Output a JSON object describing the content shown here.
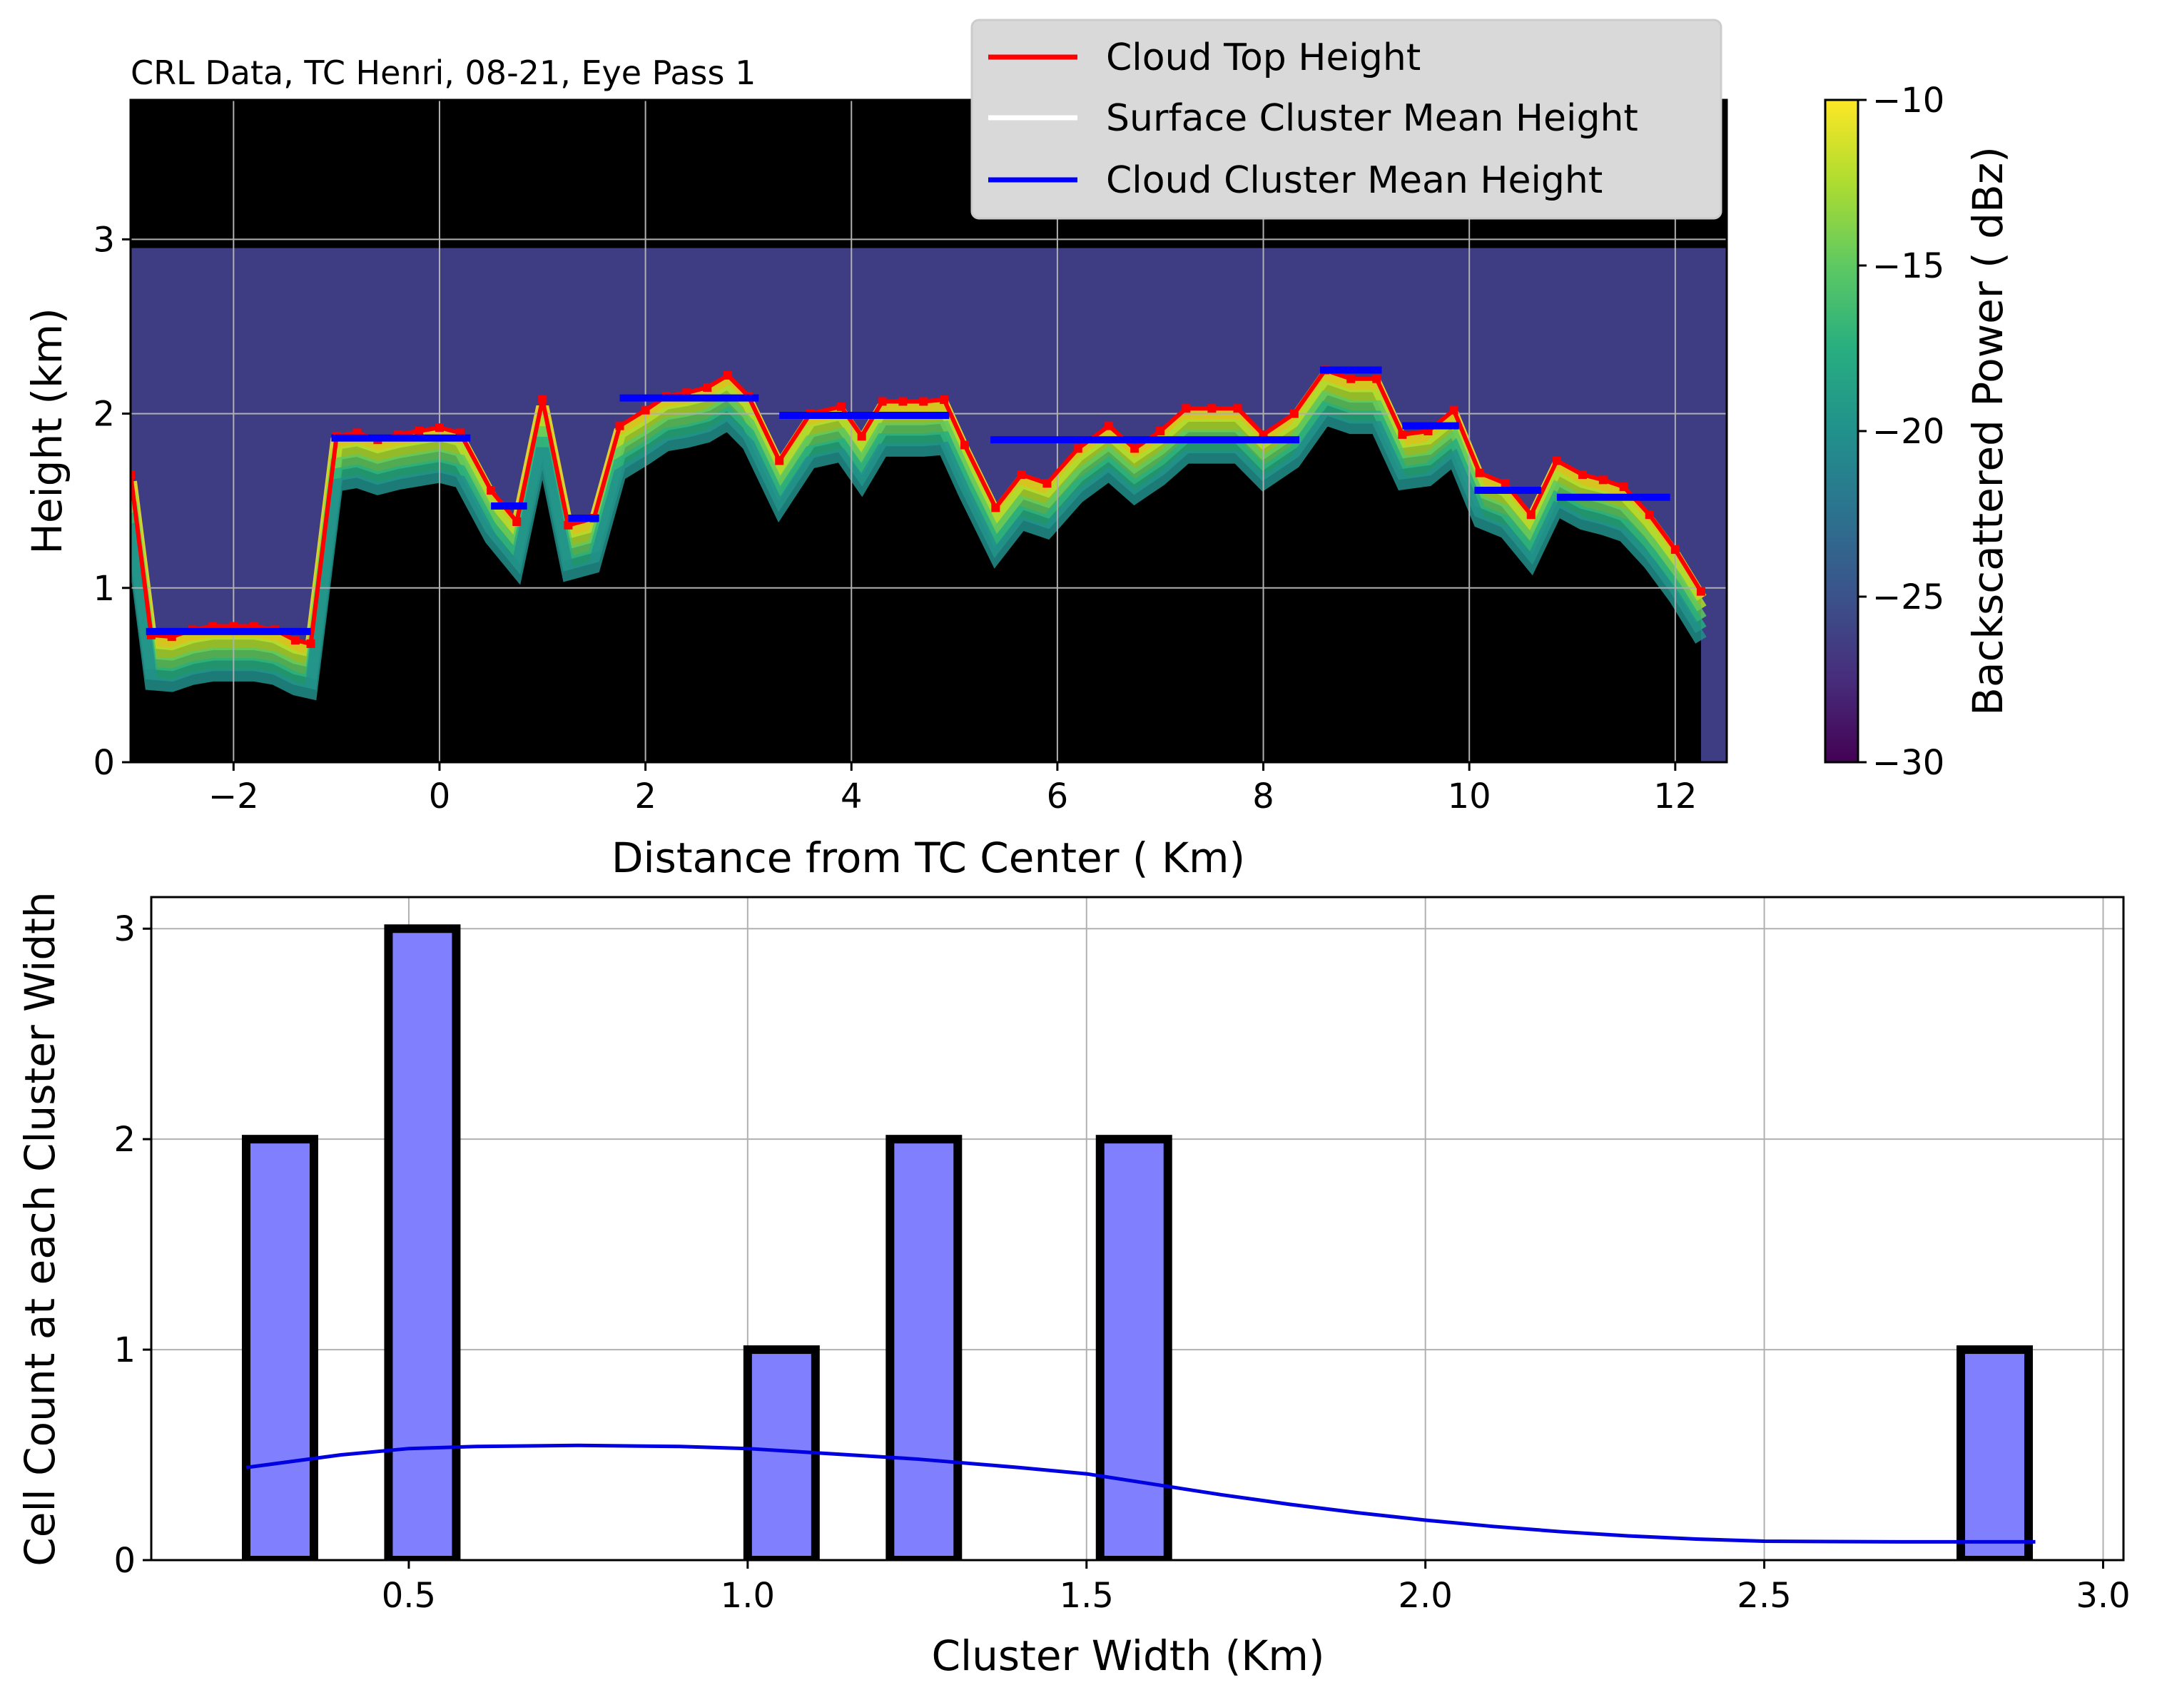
{
  "chart_data": [
    {
      "type": "heatmap",
      "title": "CRL Data, TC Henri, 08-21, Eye Pass 1",
      "xlabel": "Distance from TC Center ( Km)",
      "ylabel": "Height (km)",
      "xlim": [
        -3.0,
        12.5
      ],
      "ylim": [
        0,
        3.8
      ],
      "xticks": [
        -2,
        0,
        2,
        4,
        6,
        8,
        10,
        12
      ],
      "yticks": [
        0,
        1,
        2,
        3
      ],
      "grid": true,
      "legend_position": "top-right",
      "colorbar": {
        "label": "Backscattered Power ( dBz)",
        "range": [
          -30,
          -10
        ],
        "ticks": [
          -30,
          -25,
          -20,
          -15,
          -10
        ],
        "tick_labels": [
          "−30",
          "−25",
          "−20",
          "−15",
          "−10"
        ],
        "colormap": "viridis"
      },
      "series": [
        {
          "name": "Cloud Top Height",
          "color": "#ff0000",
          "x": [
            -3.0,
            -2.8,
            -2.6,
            -2.4,
            -2.2,
            -2.0,
            -1.8,
            -1.6,
            -1.4,
            -1.25,
            -1.0,
            -0.8,
            -0.6,
            -0.4,
            -0.2,
            0.0,
            0.2,
            0.5,
            0.75,
            1.0,
            1.25,
            1.5,
            1.75,
            2.0,
            2.2,
            2.4,
            2.6,
            2.8,
            3.0,
            3.3,
            3.6,
            3.9,
            4.1,
            4.3,
            4.5,
            4.7,
            4.9,
            5.1,
            5.4,
            5.65,
            5.9,
            6.2,
            6.5,
            6.75,
            7.0,
            7.25,
            7.5,
            7.75,
            8.0,
            8.3,
            8.6,
            8.85,
            9.1,
            9.35,
            9.6,
            9.85,
            10.1,
            10.35,
            10.6,
            10.85,
            11.1,
            11.3,
            11.5,
            11.75,
            12.0,
            12.25
          ],
          "y": [
            1.65,
            0.73,
            0.72,
            0.76,
            0.78,
            0.78,
            0.78,
            0.76,
            0.7,
            0.68,
            1.87,
            1.89,
            1.85,
            1.88,
            1.9,
            1.92,
            1.89,
            1.56,
            1.38,
            2.08,
            1.36,
            1.4,
            1.93,
            2.02,
            2.1,
            2.12,
            2.15,
            2.22,
            2.1,
            1.73,
            2.0,
            2.04,
            1.87,
            2.07,
            2.07,
            2.07,
            2.08,
            1.82,
            1.46,
            1.65,
            1.6,
            1.8,
            1.93,
            1.8,
            1.9,
            2.03,
            2.03,
            2.03,
            1.88,
            2.0,
            2.25,
            2.2,
            2.2,
            1.88,
            1.9,
            2.02,
            1.66,
            1.6,
            1.42,
            1.73,
            1.65,
            1.62,
            1.58,
            1.42,
            1.22,
            0.98
          ]
        },
        {
          "name": "Surface Cluster Mean Height",
          "color": "#ffffff",
          "segments": []
        },
        {
          "name": "Cloud Cluster Mean Height",
          "color": "#0000ff",
          "segments": [
            {
              "x0": -2.85,
              "x1": -1.25,
              "y": 0.75
            },
            {
              "x0": -1.05,
              "x1": 0.3,
              "y": 1.86
            },
            {
              "x0": 0.5,
              "x1": 0.85,
              "y": 1.47
            },
            {
              "x0": 1.25,
              "x1": 1.55,
              "y": 1.4
            },
            {
              "x0": 1.75,
              "x1": 3.1,
              "y": 2.09
            },
            {
              "x0": 3.3,
              "x1": 4.95,
              "y": 1.99
            },
            {
              "x0": 5.35,
              "x1": 8.35,
              "y": 1.85
            },
            {
              "x0": 8.55,
              "x1": 9.15,
              "y": 2.25
            },
            {
              "x0": 9.35,
              "x1": 9.9,
              "y": 1.93
            },
            {
              "x0": 10.05,
              "x1": 10.7,
              "y": 1.56
            },
            {
              "x0": 10.85,
              "x1": 11.95,
              "y": 1.52
            }
          ]
        }
      ]
    },
    {
      "type": "bar",
      "xlabel": "Cluster Width (Km)",
      "ylabel": "Cell Count at each Cluster Width",
      "xlim": [
        0.12,
        3.03
      ],
      "ylim": [
        0,
        3.15
      ],
      "xticks": [
        0.5,
        1.0,
        1.5,
        2.0,
        2.5,
        3.0
      ],
      "yticks": [
        0,
        1,
        2,
        3
      ],
      "grid": true,
      "bar_color": "#8080ff",
      "bars": [
        {
          "x0": 0.26,
          "x1": 0.36,
          "value": 2
        },
        {
          "x0": 0.47,
          "x1": 0.57,
          "value": 3
        },
        {
          "x0": 1.0,
          "x1": 1.1,
          "value": 1
        },
        {
          "x0": 1.21,
          "x1": 1.31,
          "value": 2
        },
        {
          "x0": 1.52,
          "x1": 1.62,
          "value": 2
        },
        {
          "x0": 2.79,
          "x1": 2.89,
          "value": 1
        }
      ],
      "kde": {
        "color": "#0000e0",
        "x": [
          0.26,
          0.4,
          0.5,
          0.6,
          0.75,
          0.9,
          1.0,
          1.1,
          1.25,
          1.4,
          1.5,
          1.6,
          1.7,
          1.8,
          1.9,
          2.0,
          2.1,
          2.2,
          2.3,
          2.4,
          2.5,
          2.6,
          2.7,
          2.8,
          2.9
        ],
        "y": [
          0.44,
          0.5,
          0.53,
          0.54,
          0.545,
          0.54,
          0.53,
          0.51,
          0.48,
          0.44,
          0.41,
          0.36,
          0.31,
          0.265,
          0.225,
          0.19,
          0.16,
          0.135,
          0.115,
          0.1,
          0.09,
          0.088,
          0.087,
          0.087,
          0.087
        ]
      }
    }
  ]
}
